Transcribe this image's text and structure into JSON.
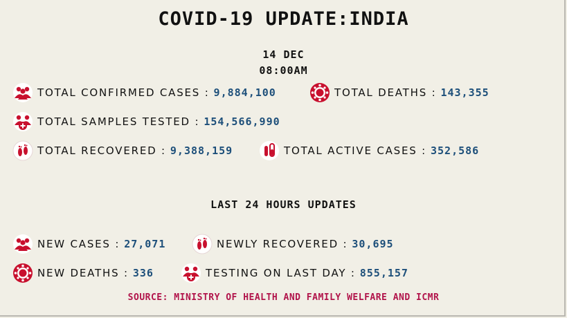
{
  "title": "COVID-19 UPDATE:INDIA",
  "date": "14 DEC",
  "time": "08:00AM",
  "colors": {
    "accent": "#c8102e",
    "value": "#1d4f7a",
    "source": "#b1134a",
    "background": "#f1efe6"
  },
  "totals": {
    "confirmed": {
      "label": "TOTAL CONFIRMED CASES :",
      "value": "9,884,100",
      "icon": "people-icon"
    },
    "deaths": {
      "label": "TOTAL DEATHS :",
      "value": "143,355",
      "icon": "virus-icon"
    },
    "samples": {
      "label": "TOTAL SAMPLES TESTED :",
      "value": "154,566,990",
      "icon": "people-medical-icon"
    },
    "recovered": {
      "label": "TOTAL RECOVERED :",
      "value": "9,388,159",
      "icon": "footprints-icon"
    },
    "active": {
      "label": "TOTAL ACTIVE CASES :",
      "value": "352,586",
      "icon": "test-tube-icon"
    }
  },
  "last24": {
    "title": "LAST 24 HOURS UPDATES",
    "new_cases": {
      "label": "NEW CASES :",
      "value": "27,071",
      "icon": "people-icon"
    },
    "newly_recovered": {
      "label": "NEWLY RECOVERED :",
      "value": "30,695",
      "icon": "footprints-icon"
    },
    "new_deaths": {
      "label": "NEW DEATHS :",
      "value": "336",
      "icon": "virus-icon"
    },
    "testing": {
      "label": "TESTING ON LAST DAY :",
      "value": "855,157",
      "icon": "people-medical-icon"
    }
  },
  "source": "SOURCE: MINISTRY OF HEALTH AND FAMILY WELFARE AND ICMR"
}
